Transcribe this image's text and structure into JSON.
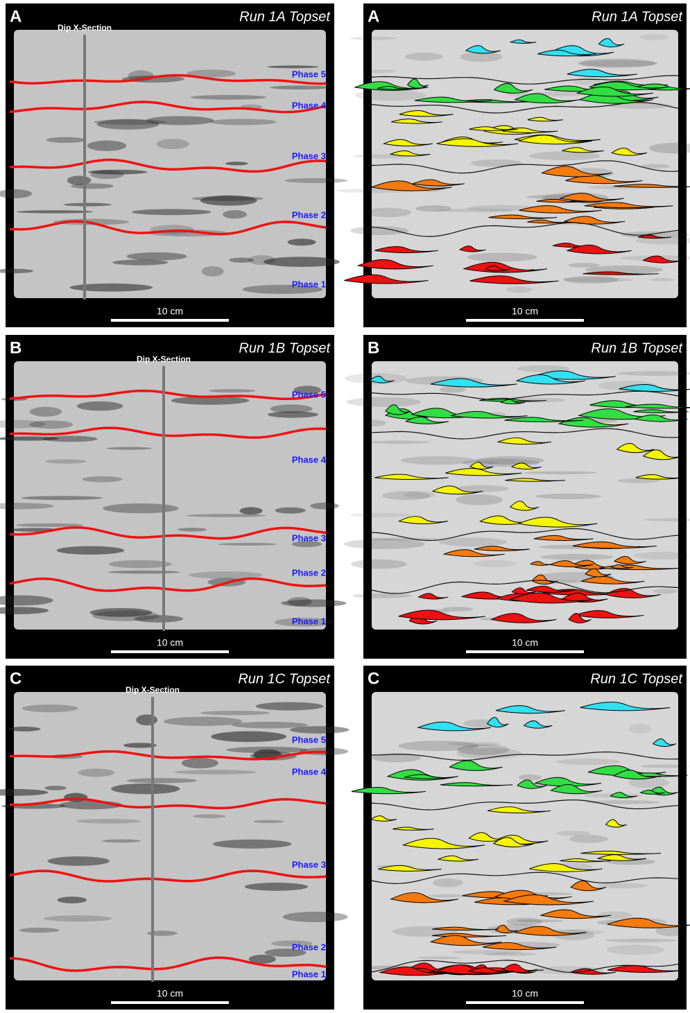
{
  "panels": [
    {
      "left": {
        "label": "A",
        "title": "Run 1A Topset",
        "section": "Dip X-Section",
        "phases": [
          "Phase 5",
          "Phase 4",
          "Phase 3",
          "Phase 2",
          "Phase 1"
        ],
        "scale": "10 cm"
      },
      "right": {
        "label": "A",
        "title": "Run 1A Topset",
        "scale": "10 cm"
      }
    },
    {
      "left": {
        "label": "B",
        "title": "Run 1B Topset",
        "section": "Dip X-Section",
        "phases": [
          "Phase 5",
          "Phase 4",
          "Phase 3",
          "Phase 2",
          "Phase 1"
        ],
        "scale": "10 cm"
      },
      "right": {
        "label": "B",
        "title": "Run 1B Topset",
        "scale": "10 cm"
      }
    },
    {
      "left": {
        "label": "C",
        "title": "Run 1C Topset",
        "section": "Dip X-Section",
        "phases": [
          "Phase 5",
          "Phase 4",
          "Phase 3",
          "Phase 2",
          "Phase 1"
        ],
        "scale": "10 cm"
      },
      "right": {
        "label": "C",
        "title": "Run 1C Topset",
        "scale": "10 cm"
      }
    }
  ]
}
